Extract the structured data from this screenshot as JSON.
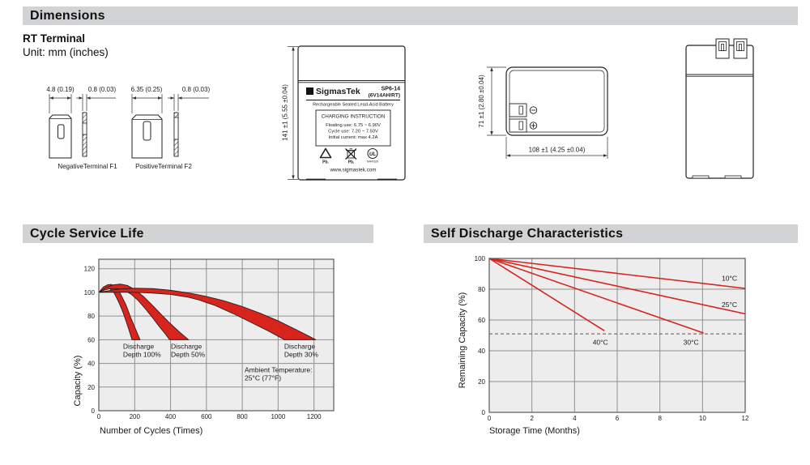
{
  "colors": {
    "header_bar": "#d2d3d5",
    "accent_red": "#d7241c",
    "chart_bg": "#ededed",
    "chart_grid": "#8f8f8f",
    "chart_border": "#5a5a5a",
    "ink": "#1a1a1a"
  },
  "icons": {
    "brand-logo-icon": "Σ",
    "recycle-pb-icon": "♻",
    "trash-pb-icon": "🗑",
    "ul-mark-icon": "UL",
    "negative-terminal-icon": "⊖",
    "positive-terminal-icon": "⊕"
  },
  "sections": {
    "dimensions": "Dimensions"
  },
  "dimensions_section": {
    "subsection": "RT Terminal",
    "unit_note": "Unit: mm (inches)"
  },
  "terminals": {
    "f1": {
      "width_dim": "4.8 (0.19)",
      "thickness_dim": "0.8 (0.03)",
      "label": "NegativeTerminal F1"
    },
    "f2": {
      "width_dim": "6.35 (0.25)",
      "thickness_dim": "0.8 (0.03)",
      "label": "PositiveTerminal F2"
    }
  },
  "front_view": {
    "height_dim": "141 ±1 (5.55 ±0.04)",
    "label": {
      "brand": "SigmasTek",
      "model": "SP6-14",
      "model_sub": "(6V14AH/RT)",
      "battery_type": "Rechargeable Sealed Lead-Acid Battery",
      "charging_title": "CHARGING INSTRUCTION",
      "charging_lines": [
        "Floating use: 6.75 ~ 6.90V",
        "Cycle use: 7.20 ~ 7.50V",
        "Initial current: max 4.2A"
      ],
      "pb_recycle": "Pb.",
      "pb_trash": "Pb.",
      "ul_text": "UL",
      "ul_code": "MH47629",
      "website": "www.sigmastek.com"
    }
  },
  "top_view": {
    "height_dim": "71 ±1 (2.80 ±0.04)",
    "width_dim": "108 ±1 (4.25 ±0.04)"
  },
  "chart_data": [
    {
      "type": "area",
      "title": "Cycle Service Life",
      "xlabel": "Number of Cycles (Times)",
      "ylabel": "Capacity (%)",
      "xlim": [
        0,
        1310
      ],
      "ylim": [
        0,
        128
      ],
      "xticks": [
        0,
        200,
        400,
        600,
        800,
        1000,
        1200
      ],
      "yticks": [
        0,
        20,
        40,
        60,
        80,
        100,
        120
      ],
      "grid": true,
      "bands": [
        {
          "name": "Discharge Depth 100%",
          "upper": [
            [
              0,
              100
            ],
            [
              25,
              104.5
            ],
            [
              50,
              106.5
            ],
            [
              70,
              106.8
            ],
            [
              95,
              104.5
            ],
            [
              120,
              99
            ],
            [
              150,
              90
            ],
            [
              180,
              78
            ],
            [
              205,
              69
            ],
            [
              230,
              60
            ]
          ],
          "lower": [
            [
              0,
              100
            ],
            [
              20,
              102
            ],
            [
              40,
              103.5
            ],
            [
              60,
              103.2
            ],
            [
              85,
              99.5
            ],
            [
              110,
              92
            ],
            [
              135,
              83
            ],
            [
              160,
              72
            ],
            [
              185,
              60
            ]
          ]
        },
        {
          "name": "Discharge Depth 50%",
          "upper": [
            [
              0,
              100
            ],
            [
              40,
              104
            ],
            [
              80,
              106.3
            ],
            [
              120,
              107
            ],
            [
              160,
              105.8
            ],
            [
              200,
              102.5
            ],
            [
              250,
              96.5
            ],
            [
              300,
              89
            ],
            [
              350,
              81
            ],
            [
              400,
              73.5
            ],
            [
              450,
              66.5
            ],
            [
              500,
              60
            ]
          ],
          "lower": [
            [
              0,
              100
            ],
            [
              30,
              101.8
            ],
            [
              60,
              103
            ],
            [
              100,
              103.3
            ],
            [
              140,
              102
            ],
            [
              180,
              98.5
            ],
            [
              220,
              93
            ],
            [
              260,
              86
            ],
            [
              300,
              78.5
            ],
            [
              340,
              70.5
            ],
            [
              370,
              65
            ],
            [
              395,
              60
            ]
          ]
        },
        {
          "name": "Discharge Depth 30%",
          "upper": [
            [
              0,
              100
            ],
            [
              60,
              101.6
            ],
            [
              120,
              102.8
            ],
            [
              200,
              103.5
            ],
            [
              300,
              103.2
            ],
            [
              400,
              101.8
            ],
            [
              500,
              99.6
            ],
            [
              600,
              96.6
            ],
            [
              700,
              92.8
            ],
            [
              800,
              88
            ],
            [
              900,
              82.4
            ],
            [
              1000,
              76
            ],
            [
              1100,
              68.6
            ],
            [
              1210,
              60
            ]
          ],
          "lower": [
            [
              0,
              100
            ],
            [
              100,
              100.2
            ],
            [
              200,
              100
            ],
            [
              300,
              99.4
            ],
            [
              400,
              98.2
            ],
            [
              500,
              95.8
            ],
            [
              560,
              93.5
            ],
            [
              650,
              88.8
            ],
            [
              750,
              82
            ],
            [
              850,
              74.5
            ],
            [
              950,
              67
            ],
            [
              1035,
              60
            ]
          ]
        }
      ],
      "annotations": [
        {
          "x": 135,
          "y": 52.5,
          "lines": [
            "Discharge",
            "Depth 100%"
          ]
        },
        {
          "x": 402,
          "y": 52.5,
          "lines": [
            "Discharge",
            "Depth 50%"
          ]
        },
        {
          "x": 1034,
          "y": 52.5,
          "lines": [
            "Discharge",
            "Depth 30%"
          ]
        },
        {
          "x": 813,
          "y": 32.5,
          "lines": [
            "Ambient Temperature:",
            "25°C (77°F)"
          ]
        }
      ]
    },
    {
      "type": "line",
      "title": "Self Discharge Characteristics",
      "xlabel": "Storage Time (Months)",
      "ylabel": "Remaining Capacity (%)",
      "xlim": [
        0,
        12
      ],
      "ylim": [
        0,
        100
      ],
      "xticks": [
        0,
        2,
        4,
        6,
        8,
        10,
        12
      ],
      "yticks": [
        0,
        20,
        40,
        60,
        80,
        100
      ],
      "grid": true,
      "dashed_line_y": 51,
      "series": [
        {
          "name": "10°C",
          "points": [
            [
              0,
              100
            ],
            [
              12,
              80.5
            ]
          ],
          "label_at": [
            10.9,
            85.5
          ]
        },
        {
          "name": "25°C",
          "points": [
            [
              0,
              100
            ],
            [
              12,
              64
            ]
          ],
          "label_at": [
            10.9,
            68.5
          ]
        },
        {
          "name": "30°C",
          "points": [
            [
              0,
              100
            ],
            [
              10.05,
              51.5
            ]
          ],
          "label_at": [
            9.1,
            44
          ]
        },
        {
          "name": "40°C",
          "points": [
            [
              0,
              100
            ],
            [
              5.4,
              53
            ]
          ],
          "label_at": [
            4.85,
            44
          ]
        }
      ]
    }
  ]
}
